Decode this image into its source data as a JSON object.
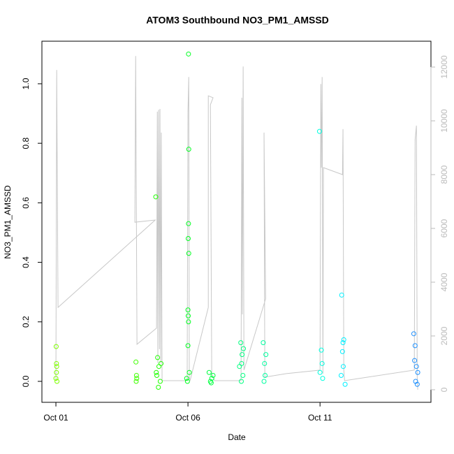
{
  "chart_data": {
    "type": "scatter",
    "title": "ATOM3 Southbound NO3_PM1_AMSSD",
    "x_label": "Date",
    "y_label": "NO3_PM1_AMSSD",
    "xlim": [
      -0.53,
      14.2
    ],
    "xticks": [
      {
        "value": 0,
        "label": "Oct 01"
      },
      {
        "value": 5,
        "label": "Oct 06"
      },
      {
        "value": 10,
        "label": "Oct 11"
      }
    ],
    "ylim": [
      -0.0704,
      1.143
    ],
    "yticks": [
      {
        "value": 0,
        "label": "0.0"
      },
      0.2,
      0.4,
      0.6,
      0.8,
      {
        "value": 1,
        "label": "1.0"
      }
    ],
    "y2lim": [
      -468,
      12961
    ],
    "y2ticks": [
      0,
      2000,
      4000,
      6000,
      8000,
      10000,
      12000
    ],
    "series": [
      {
        "type": "scatter",
        "x": [
          0.0,
          0.02,
          0.03,
          0.01,
          0.04,
          0.02,
          3.04,
          3.05,
          3.03,
          3.06,
          3.78,
          3.8,
          3.85,
          3.9,
          3.95,
          3.98,
          3.88,
          3.82,
          5.02,
          5.03,
          5.02,
          5.01,
          5.03,
          5.0,
          5.02,
          5.0,
          4.95,
          5.05,
          4.98,
          5.01,
          5.8,
          5.85,
          5.9,
          5.95,
          5.88,
          6.95,
          7.0,
          7.05,
          7.08,
          7.02,
          7.1,
          7.03,
          7.85,
          7.9,
          7.92,
          7.88,
          7.95,
          9.98,
          10.05,
          10.0,
          10.1,
          10.08,
          10.82,
          10.9,
          10.85,
          10.8,
          10.88,
          10.95,
          10.87,
          13.55,
          13.6,
          13.65,
          13.62,
          13.7,
          13.58,
          13.68
        ],
        "values": [
          0.01,
          0.03,
          0.05,
          0.117,
          0.0,
          0.06,
          0.0,
          0.02,
          0.065,
          0.01,
          0.62,
          0.03,
          0.08,
          0.05,
          0.0,
          0.06,
          -0.02,
          0.02,
          1.1,
          0.78,
          0.53,
          0.48,
          0.43,
          0.24,
          0.2,
          0.12,
          0.01,
          0.03,
          0.0,
          0.22,
          0.03,
          0.0,
          0.01,
          0.02,
          -0.005,
          0.05,
          0.13,
          0.09,
          0.02,
          0.0,
          0.11,
          0.06,
          0.13,
          0.06,
          0.02,
          0.0,
          0.09,
          0.84,
          0.105,
          0.03,
          0.01,
          0.06,
          0.29,
          0.14,
          0.1,
          0.02,
          0.05,
          -0.01,
          0.13,
          0.16,
          0.12,
          0.05,
          0.0,
          0.03,
          0.07,
          -0.01
        ],
        "colors": [
          "#7fff00",
          "#7fff00",
          "#7fff00",
          "#7fff00",
          "#7fff00",
          "#7fff00",
          "#40ff00",
          "#40ff00",
          "#40ff00",
          "#40ff00",
          "#20ff00",
          "#20ff00",
          "#20ff00",
          "#20ff00",
          "#20ff00",
          "#20ff00",
          "#20ff00",
          "#20ff00",
          "#00ff20",
          "#00ff20",
          "#00ff20",
          "#00ff20",
          "#00ff20",
          "#00ff20",
          "#00ff20",
          "#00ff20",
          "#00ff20",
          "#00ff20",
          "#00ff20",
          "#00ff20",
          "#00ff40",
          "#00ff40",
          "#00ff40",
          "#00ff40",
          "#00ff40",
          "#00ff80",
          "#00ff80",
          "#00ff80",
          "#00ff80",
          "#00ff80",
          "#00ff80",
          "#00ff80",
          "#00ffa0",
          "#00ffa0",
          "#00ffa0",
          "#00ffa0",
          "#00ffa0",
          "#00ffe0",
          "#00ffe0",
          "#00ffe0",
          "#00ffe0",
          "#00ffe0",
          "#00f0ff",
          "#00f0ff",
          "#00f0ff",
          "#00f0ff",
          "#00f0ff",
          "#00f0ff",
          "#00f0ff",
          "#1e90ff",
          "#1e90ff",
          "#1e90ff",
          "#1e90ff",
          "#1e90ff",
          "#1e90ff",
          "#1e90ff"
        ]
      },
      {
        "type": "line",
        "axis": "y2",
        "color": "#c8c8c8",
        "x": [
          0,
          0.03,
          0.08,
          3.76,
          2.99,
          3.02,
          3.07,
          3.81,
          3.84,
          3.86,
          3.89,
          3.92,
          3.94,
          3.97,
          3.99,
          4.02,
          4.97,
          5.0,
          5.03,
          5.05,
          5.08,
          5.77,
          5.77,
          5.95,
          5.85,
          5.9,
          6.01,
          7.01,
          7.04,
          7.06,
          7.09,
          7.12,
          7.94,
          7.88,
          7.91,
          8.73,
          10.0,
          10.03,
          10.05,
          10.08,
          10.11,
          10.13,
          10.85,
          10.87,
          10.9,
          10.93,
          13.57,
          13.6,
          13.65,
          13.68,
          13.7
        ],
        "values": [
          338,
          11890,
          3060,
          6310,
          6230,
          12410,
          1690,
          2290,
          10340,
          990,
          10410,
          1510,
          10440,
          990,
          9560,
          338,
          338,
          10340,
          11630,
          470,
          338,
          3060,
          10930,
          10860,
          10600,
          600,
          338,
          338,
          10860,
          2800,
          12020,
          730,
          3380,
          9560,
          470,
          600,
          730,
          11370,
          8260,
          11630,
          600,
          8260,
          8000,
          9690,
          730,
          338,
          730,
          9300,
          9820,
          470,
          0
        ]
      }
    ]
  }
}
